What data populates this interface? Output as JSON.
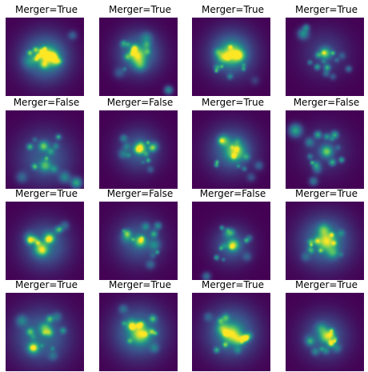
{
  "colormap": {
    "name": "viridis",
    "stops": [
      "#440154",
      "#3b528b",
      "#21918c",
      "#5ec962",
      "#fde725"
    ]
  },
  "panels": [
    {
      "title": "Merger=True"
    },
    {
      "title": "Merger=True"
    },
    {
      "title": "Merger=True"
    },
    {
      "title": "Merger=True"
    },
    {
      "title": "Merger=False"
    },
    {
      "title": "Merger=False"
    },
    {
      "title": "Merger=True"
    },
    {
      "title": "Merger=False"
    },
    {
      "title": "Merger=True"
    },
    {
      "title": "Merger=False"
    },
    {
      "title": "Merger=False"
    },
    {
      "title": "Merger=True"
    },
    {
      "title": "Merger=True"
    },
    {
      "title": "Merger=True"
    },
    {
      "title": "Merger=True"
    },
    {
      "title": "Merger=True"
    }
  ]
}
